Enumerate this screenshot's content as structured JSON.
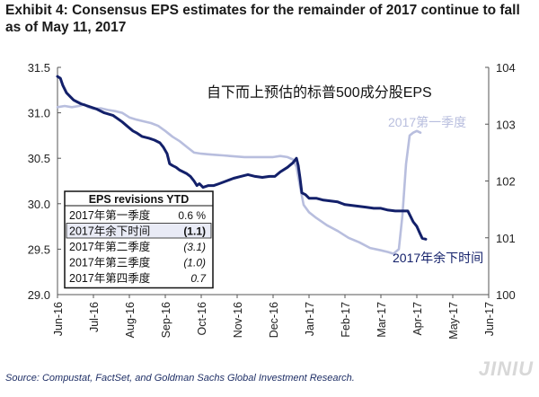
{
  "title": "Exhibit 4: Consensus EPS estimates for the remainder of 2017 continue to fall as of May 11, 2017",
  "source": "Source: Compustat, FactSet, and Goldman Sachs Global Investment Research.",
  "watermark": "JINIU",
  "colors": {
    "dark_series": "#13206a",
    "light_series": "#b8bede",
    "axis": "#555555"
  },
  "chart_data": {
    "type": "line",
    "annotation_main": "自下而上预估的标普500成分股EPS",
    "x_ticks": [
      "Jun-16",
      "Jul-16",
      "Aug-16",
      "Sep-16",
      "Oct-16",
      "Nov-16",
      "Dec-16",
      "Jan-17",
      "Feb-17",
      "Mar-17",
      "Apr-17",
      "May-17",
      "Jun-17"
    ],
    "xlim": [
      0,
      12
    ],
    "y_left": {
      "lim": [
        29.0,
        31.5
      ],
      "ticks": [
        "29.0",
        "29.5",
        "30.0",
        "30.5",
        "31.0",
        "31.5"
      ]
    },
    "y_right": {
      "lim": [
        100,
        104
      ],
      "ticks": [
        "100",
        "101",
        "102",
        "103",
        "104"
      ]
    },
    "grid": false,
    "series": [
      {
        "name": "2017年余下时间",
        "axis": "left",
        "color": "#13206a",
        "points": [
          [
            0,
            31.4
          ],
          [
            0.08,
            31.38
          ],
          [
            0.15,
            31.3
          ],
          [
            0.25,
            31.22
          ],
          [
            0.35,
            31.18
          ],
          [
            0.45,
            31.14
          ],
          [
            0.55,
            31.12
          ],
          [
            0.65,
            31.1
          ],
          [
            0.8,
            31.08
          ],
          [
            0.95,
            31.06
          ],
          [
            1.1,
            31.04
          ],
          [
            1.3,
            31.0
          ],
          [
            1.55,
            30.97
          ],
          [
            1.8,
            30.9
          ],
          [
            1.95,
            30.85
          ],
          [
            2.1,
            30.8
          ],
          [
            2.2,
            30.78
          ],
          [
            2.35,
            30.74
          ],
          [
            2.55,
            30.72
          ],
          [
            2.7,
            30.7
          ],
          [
            2.85,
            30.67
          ],
          [
            2.95,
            30.62
          ],
          [
            3.05,
            30.55
          ],
          [
            3.12,
            30.44
          ],
          [
            3.2,
            30.42
          ],
          [
            3.3,
            30.4
          ],
          [
            3.4,
            30.37
          ],
          [
            3.5,
            30.35
          ],
          [
            3.6,
            30.33
          ],
          [
            3.7,
            30.3
          ],
          [
            3.8,
            30.25
          ],
          [
            3.88,
            30.2
          ],
          [
            3.95,
            30.22
          ],
          [
            4.05,
            30.18
          ],
          [
            4.2,
            30.2
          ],
          [
            4.35,
            30.2
          ],
          [
            4.5,
            30.22
          ],
          [
            4.7,
            30.25
          ],
          [
            4.9,
            30.28
          ],
          [
            5.1,
            30.3
          ],
          [
            5.3,
            30.32
          ],
          [
            5.5,
            30.3
          ],
          [
            5.7,
            30.29
          ],
          [
            5.9,
            30.3
          ],
          [
            6.05,
            30.3
          ],
          [
            6.2,
            30.35
          ],
          [
            6.4,
            30.4
          ],
          [
            6.55,
            30.45
          ],
          [
            6.65,
            30.5
          ],
          [
            6.7,
            30.42
          ],
          [
            6.75,
            30.28
          ],
          [
            6.8,
            30.12
          ],
          [
            6.9,
            30.1
          ],
          [
            7.0,
            30.06
          ],
          [
            7.2,
            30.06
          ],
          [
            7.4,
            30.04
          ],
          [
            7.6,
            30.03
          ],
          [
            7.8,
            30.02
          ],
          [
            8.0,
            29.99
          ],
          [
            8.2,
            29.98
          ],
          [
            8.4,
            29.97
          ],
          [
            8.6,
            29.96
          ],
          [
            8.8,
            29.95
          ],
          [
            9.0,
            29.95
          ],
          [
            9.2,
            29.93
          ],
          [
            9.4,
            29.92
          ],
          [
            9.6,
            29.92
          ],
          [
            9.75,
            29.92
          ],
          [
            9.8,
            29.88
          ],
          [
            9.9,
            29.8
          ],
          [
            10.0,
            29.75
          ],
          [
            10.08,
            29.68
          ],
          [
            10.15,
            29.62
          ],
          [
            10.25,
            29.61
          ]
        ]
      },
      {
        "name": "2017第一季度",
        "axis": "right",
        "color": "#b8bede",
        "points": [
          [
            0,
            103.3
          ],
          [
            0.2,
            103.32
          ],
          [
            0.4,
            103.3
          ],
          [
            0.6,
            103.32
          ],
          [
            0.75,
            103.35
          ],
          [
            0.85,
            103.3
          ],
          [
            1.0,
            103.27
          ],
          [
            1.2,
            103.28
          ],
          [
            1.4,
            103.25
          ],
          [
            1.6,
            103.23
          ],
          [
            1.8,
            103.2
          ],
          [
            2.0,
            103.12
          ],
          [
            2.2,
            103.08
          ],
          [
            2.4,
            103.05
          ],
          [
            2.6,
            103.02
          ],
          [
            2.8,
            102.97
          ],
          [
            3.0,
            102.88
          ],
          [
            3.2,
            102.78
          ],
          [
            3.4,
            102.7
          ],
          [
            3.6,
            102.6
          ],
          [
            3.8,
            102.5
          ],
          [
            4.0,
            102.48
          ],
          [
            4.2,
            102.47
          ],
          [
            4.4,
            102.46
          ],
          [
            4.6,
            102.45
          ],
          [
            4.8,
            102.44
          ],
          [
            5.0,
            102.43
          ],
          [
            5.2,
            102.42
          ],
          [
            5.4,
            102.42
          ],
          [
            5.6,
            102.42
          ],
          [
            5.8,
            102.42
          ],
          [
            6.0,
            102.42
          ],
          [
            6.2,
            102.44
          ],
          [
            6.4,
            102.42
          ],
          [
            6.55,
            102.38
          ],
          [
            6.65,
            102.25
          ],
          [
            6.75,
            101.9
          ],
          [
            6.85,
            101.58
          ],
          [
            7.0,
            101.45
          ],
          [
            7.2,
            101.35
          ],
          [
            7.5,
            101.22
          ],
          [
            7.8,
            101.12
          ],
          [
            8.1,
            101.0
          ],
          [
            8.4,
            100.92
          ],
          [
            8.7,
            100.82
          ],
          [
            9.0,
            100.78
          ],
          [
            9.2,
            100.75
          ],
          [
            9.35,
            100.72
          ],
          [
            9.5,
            100.8
          ],
          [
            9.6,
            101.4
          ],
          [
            9.7,
            102.3
          ],
          [
            9.8,
            102.8
          ],
          [
            9.9,
            102.85
          ],
          [
            10.0,
            102.88
          ],
          [
            10.1,
            102.85
          ]
        ]
      }
    ],
    "series_labels": [
      {
        "text": "2017第一季度",
        "series": 1
      },
      {
        "text": "2017年余下时间",
        "series": 0
      }
    ],
    "table": {
      "title": "EPS revisions YTD",
      "rows": [
        {
          "label": "2017年第一季度",
          "value": "0.6 %",
          "highlight": false,
          "italic": false
        },
        {
          "label": "2017年余下时间",
          "value": "(1.1)",
          "highlight": true,
          "italic": false
        },
        {
          "label": "2017年第二季度",
          "value": "(3.1)",
          "highlight": false,
          "italic": true
        },
        {
          "label": "2017年第三季度",
          "value": "(1.0)",
          "highlight": false,
          "italic": true
        },
        {
          "label": "2017年第四季度",
          "value": "0.7",
          "highlight": false,
          "italic": true
        }
      ]
    }
  }
}
